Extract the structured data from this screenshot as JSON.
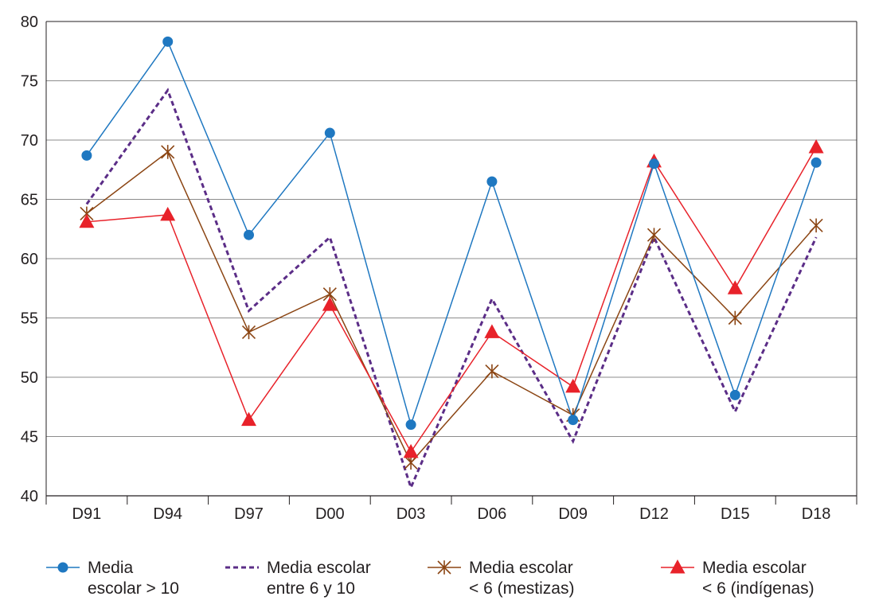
{
  "chart_data": {
    "type": "line",
    "title": "",
    "xlabel": "",
    "ylabel": "",
    "ylim": [
      40,
      80
    ],
    "yticks": [
      40,
      45,
      50,
      55,
      60,
      65,
      70,
      75,
      80
    ],
    "grid": true,
    "legend_position": "bottom",
    "categories": [
      "D91",
      "D94",
      "D97",
      "D00",
      "D03",
      "D06",
      "D09",
      "D12",
      "D15",
      "D18"
    ],
    "series": [
      {
        "name": "Media escolar > 10",
        "legend_lines": [
          "Media",
          "escolar > 10"
        ],
        "color": "#1f78c1",
        "marker": "circle",
        "line_style": "solid",
        "values": [
          68.7,
          78.3,
          62.0,
          70.6,
          46.0,
          66.5,
          46.4,
          68.0,
          48.5,
          68.1
        ]
      },
      {
        "name": "Media escolar entre 6 y 10",
        "legend_lines": [
          "Media escolar",
          "entre 6 y 10"
        ],
        "color": "#5b2d87",
        "marker": "none",
        "line_style": "dashed",
        "values": [
          64.6,
          74.2,
          55.6,
          61.8,
          40.7,
          56.6,
          44.6,
          61.8,
          47.1,
          61.8
        ]
      },
      {
        "name": "Media escolar < 6 (mestizas)",
        "legend_lines": [
          "Media escolar",
          "< 6 (mestizas)"
        ],
        "color": "#8b4513",
        "marker": "asterisk",
        "line_style": "solid",
        "values": [
          63.8,
          69.0,
          53.8,
          57.0,
          42.8,
          50.5,
          46.8,
          62.0,
          55.0,
          62.8
        ]
      },
      {
        "name": "Media escolar < 6 (indígenas)",
        "legend_lines": [
          "Media escolar",
          "< 6 (indígenas)"
        ],
        "color": "#e8222a",
        "marker": "triangle",
        "line_style": "solid",
        "values": [
          63.1,
          63.7,
          46.4,
          56.1,
          43.7,
          53.8,
          49.2,
          68.2,
          57.5,
          69.4
        ]
      }
    ]
  }
}
